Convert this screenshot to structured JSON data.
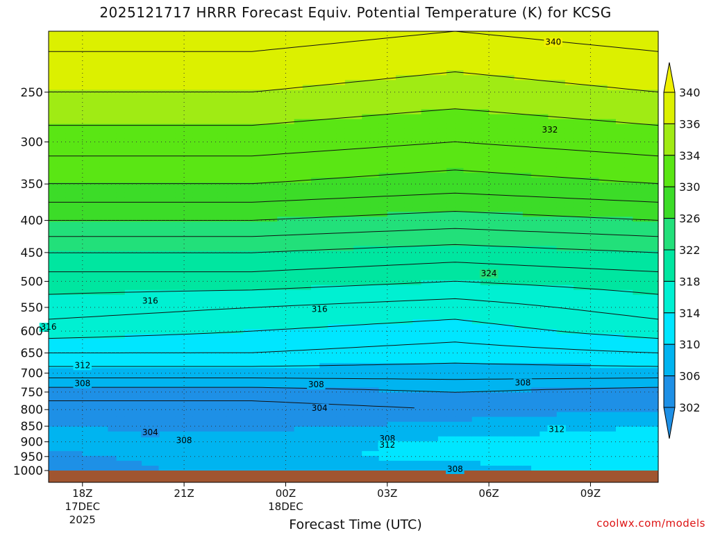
{
  "title": "2025121717 HRRR Forecast Equiv. Potential Temperature (K) for KCSG",
  "credit": "coolwx.com/models",
  "chart_data": {
    "type": "contour",
    "title": "2025121717 HRRR Forecast Equiv. Potential Temperature (K) for KCSG",
    "xlabel": "Forecast Time (UTC)",
    "ylabel": "",
    "y_scale": "log (pressure, hPa, inverted)",
    "ylim": [
      1000,
      200
    ],
    "yticks": [
      250,
      300,
      350,
      400,
      450,
      500,
      550,
      600,
      650,
      700,
      750,
      800,
      850,
      900,
      950,
      1000
    ],
    "xticks": [
      {
        "hour": 1,
        "label": "18Z",
        "sub1": "17DEC",
        "sub2": "2025"
      },
      {
        "hour": 4,
        "label": "21Z",
        "sub1": "",
        "sub2": ""
      },
      {
        "hour": 7,
        "label": "00Z",
        "sub1": "18DEC",
        "sub2": ""
      },
      {
        "hour": 10,
        "label": "03Z",
        "sub1": "",
        "sub2": ""
      },
      {
        "hour": 13,
        "label": "06Z",
        "sub1": "",
        "sub2": ""
      },
      {
        "hour": 16,
        "label": "09Z",
        "sub1": "",
        "sub2": ""
      }
    ],
    "x_range_hours": [
      0,
      18
    ],
    "grid": true,
    "colorbar": {
      "levels": [
        302,
        306,
        310,
        314,
        318,
        322,
        326,
        330,
        334,
        336,
        340
      ],
      "colors": [
        "#1e90e6",
        "#00b4f0",
        "#00e6ff",
        "#00f0d2",
        "#00e6a0",
        "#22e07a",
        "#3cdc28",
        "#5ae614",
        "#a0eb14",
        "#dcf000",
        "#f0f000"
      ]
    },
    "contour_labels": [
      {
        "value": "340",
        "hour": 14.9,
        "p": 208
      },
      {
        "value": "332",
        "hour": 14.8,
        "p": 287
      },
      {
        "value": "324",
        "hour": 13.0,
        "p": 486
      },
      {
        "value": "316",
        "hour": 3.0,
        "p": 537
      },
      {
        "value": "316",
        "hour": 8.0,
        "p": 554
      },
      {
        "value": "316",
        "hour": 0.0,
        "p": 591
      },
      {
        "value": "312",
        "hour": 1.0,
        "p": 680
      },
      {
        "value": "308",
        "hour": 1.0,
        "p": 727
      },
      {
        "value": "308",
        "hour": 7.9,
        "p": 730
      },
      {
        "value": "308",
        "hour": 14.0,
        "p": 725
      },
      {
        "value": "304",
        "hour": 8.0,
        "p": 795
      },
      {
        "value": "304",
        "hour": 3.0,
        "p": 870
      },
      {
        "value": "308",
        "hour": 4.0,
        "p": 895
      },
      {
        "value": "308",
        "hour": 10.0,
        "p": 890
      },
      {
        "value": "312",
        "hour": 10.0,
        "p": 910
      },
      {
        "value": "312",
        "hour": 15.0,
        "p": 860
      },
      {
        "value": "308",
        "hour": 12.0,
        "p": 995
      }
    ],
    "profiles": [
      {
        "hour": 0,
        "p": [
          1000,
          950,
          900,
          850,
          800,
          750,
          700,
          650,
          600,
          550,
          500,
          450,
          400,
          350,
          300,
          250,
          200
        ],
        "theta_e": [
          302,
          305,
          307,
          306,
          303,
          305,
          309,
          312,
          315,
          317,
          319,
          322,
          326,
          330,
          333,
          336,
          339
        ]
      },
      {
        "hour": 6,
        "p": [
          1000,
          950,
          900,
          850,
          800,
          750,
          700,
          650,
          600,
          550,
          500,
          450,
          400,
          350,
          300,
          250,
          200
        ],
        "theta_e": [
          309,
          309,
          308,
          305,
          303,
          305,
          309,
          312,
          314,
          316,
          319,
          322,
          326,
          330,
          333,
          336,
          339
        ]
      },
      {
        "hour": 12,
        "p": [
          1000,
          950,
          900,
          850,
          800,
          750,
          700,
          650,
          600,
          550,
          500,
          450,
          400,
          350,
          300,
          250,
          200
        ],
        "theta_e": [
          308,
          311,
          311,
          307,
          304,
          306,
          309,
          311,
          313,
          315,
          318,
          321,
          325,
          329,
          332,
          335,
          338
        ]
      },
      {
        "hour": 18,
        "p": [
          1000,
          950,
          900,
          850,
          800,
          750,
          700,
          650,
          600,
          550,
          500,
          450,
          400,
          350,
          300,
          250,
          200
        ],
        "theta_e": [
          312,
          314,
          313,
          310,
          306,
          305,
          309,
          312,
          315,
          317,
          319,
          322,
          326,
          330,
          333,
          336,
          339
        ]
      }
    ]
  }
}
